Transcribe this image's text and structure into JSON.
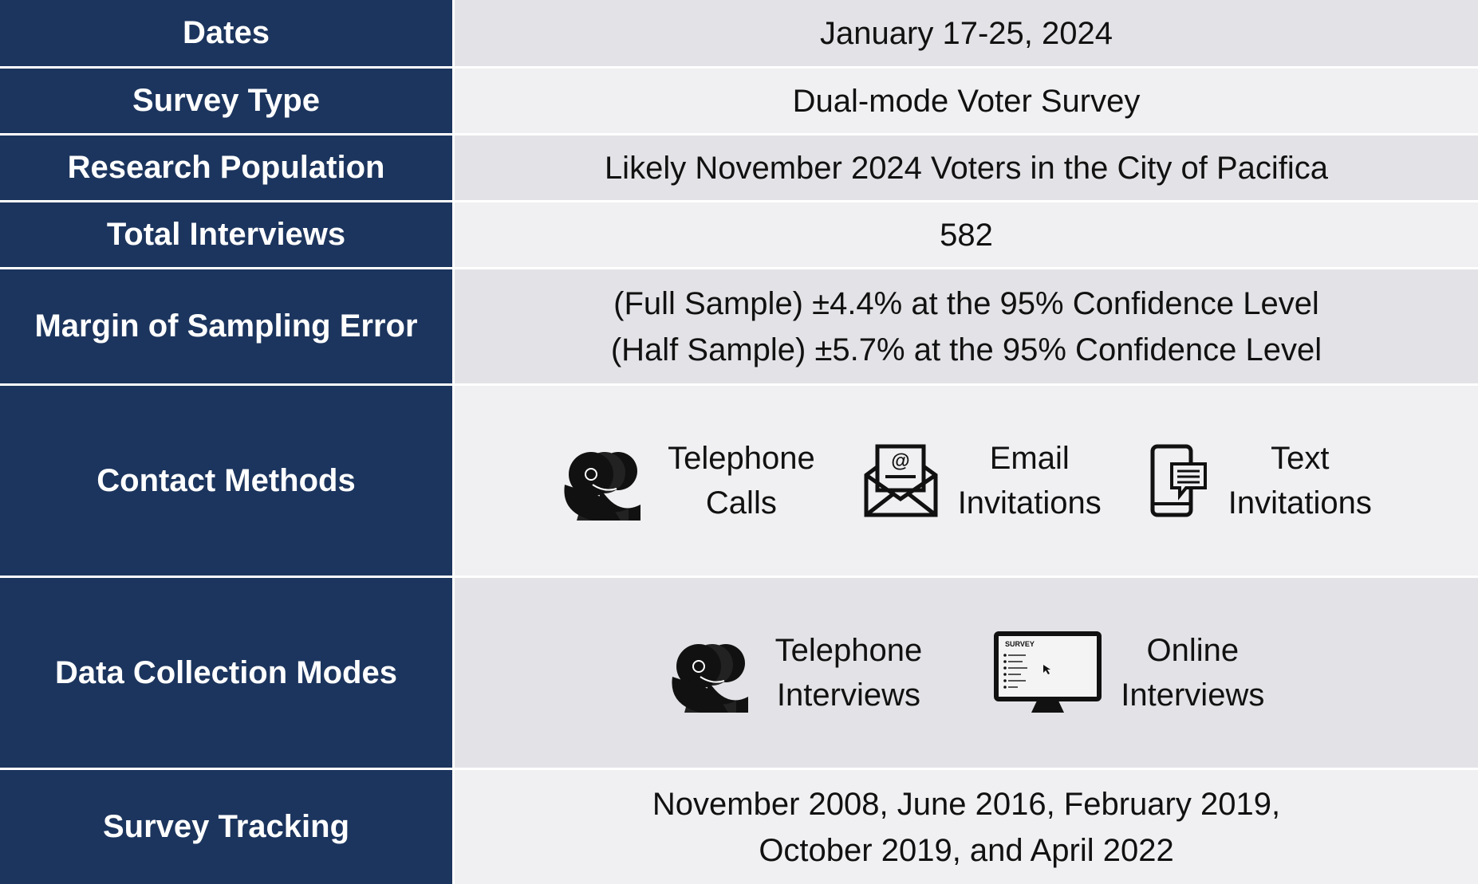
{
  "rows": [
    {
      "label": "Dates",
      "lines": [
        "January 17-25, 2024"
      ]
    },
    {
      "label": "Survey Type",
      "lines": [
        "Dual-mode Voter Survey"
      ]
    },
    {
      "label": "Research Population",
      "lines": [
        "Likely November 2024 Voters in the City of Pacifica"
      ]
    },
    {
      "label": "Total Interviews",
      "lines": [
        "582"
      ]
    },
    {
      "label": "Margin of Sampling Error",
      "lines": [
        "(Full Sample) ±4.4% at the 95% Confidence Level",
        "(Half Sample) ±5.7% at the 95% Confidence Level"
      ]
    },
    {
      "label": "Contact Methods",
      "items": [
        {
          "lines": [
            "Telephone",
            "Calls"
          ]
        },
        {
          "lines": [
            "Email",
            "Invitations"
          ]
        },
        {
          "lines": [
            "Text",
            "Invitations"
          ]
        }
      ]
    },
    {
      "label": "Data Collection Modes",
      "items": [
        {
          "lines": [
            "Telephone",
            "Interviews"
          ]
        },
        {
          "lines": [
            "Online",
            "Interviews"
          ]
        }
      ],
      "screen_label": "SURVEY"
    },
    {
      "label": "Survey Tracking",
      "lines": [
        "November 2008, June 2016, February 2019,",
        "October 2019, and April 2022"
      ]
    }
  ]
}
